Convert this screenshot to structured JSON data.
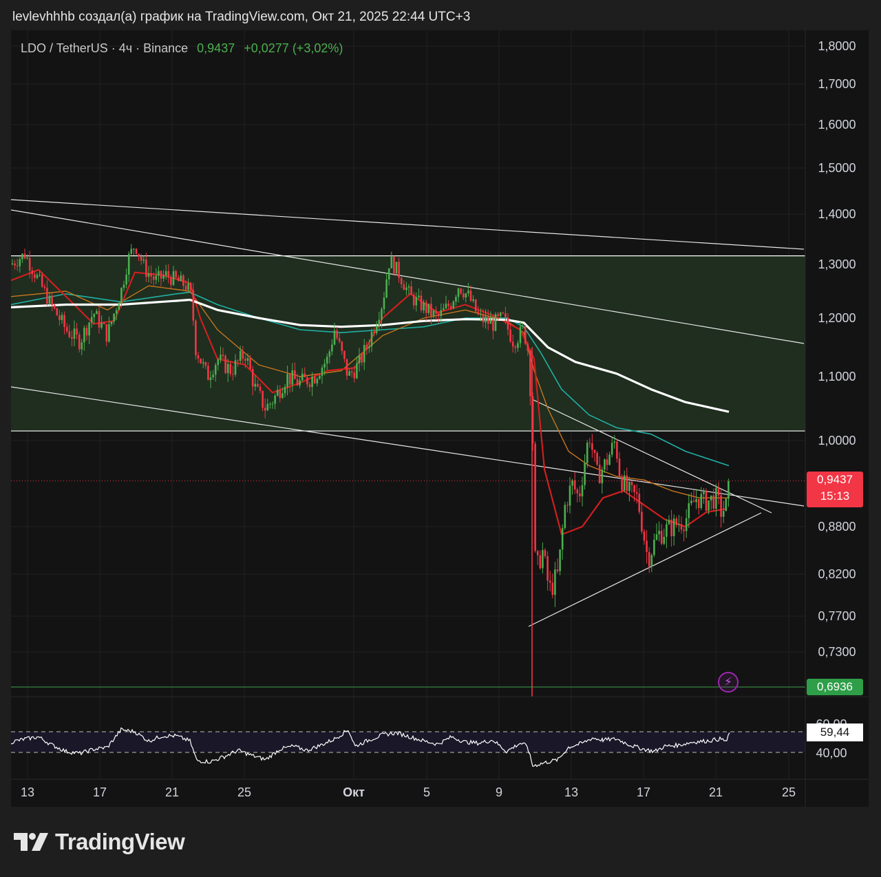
{
  "header": {
    "text": "levlevhhhb создал(а) график на TradingView.com, Окт 21, 2025 22:44 UTC+3"
  },
  "symbol": {
    "name": "LDO / TetherUS · 4ч · Binance",
    "price": "0,9437",
    "change": "+0,0277 (+3,02%)"
  },
  "badges": {
    "last_price": "0,9437",
    "countdown": "15:13",
    "low_price": "0,6936",
    "rsi_value": "59,44"
  },
  "brand": {
    "name": "TradingView"
  },
  "icons": {
    "flash": "flash-icon",
    "logo": "tradingview-logo-icon"
  },
  "colors": {
    "up": "#4caf50",
    "down": "#f23645",
    "ema_short": "#d01f1f",
    "ema_mid": "#c9761d",
    "ema_long": "#1fb2a6",
    "ema_main": "#ffffff",
    "zone": "#1f2e1f",
    "rsi_band": "#1a1728"
  },
  "chart_data": {
    "type": "candlestick",
    "symbol": "LDO / TetherUS",
    "timeframe": "4ч",
    "exchange": "Binance",
    "price_axis": {
      "ticks": [
        {
          "label": "1,8000",
          "value": 1.8
        },
        {
          "label": "1,7000",
          "value": 1.7
        },
        {
          "label": "1,6000",
          "value": 1.6
        },
        {
          "label": "1,5000",
          "value": 1.5
        },
        {
          "label": "1,4000",
          "value": 1.4
        },
        {
          "label": "1,3000",
          "value": 1.3
        },
        {
          "label": "1,2000",
          "value": 1.2
        },
        {
          "label": "1,1000",
          "value": 1.1
        },
        {
          "label": "1,0000",
          "value": 1.0
        },
        {
          "label": "0,8800",
          "value": 0.88
        },
        {
          "label": "0,8200",
          "value": 0.82
        },
        {
          "label": "0,7700",
          "value": 0.77
        },
        {
          "label": "0,7300",
          "value": 0.73
        }
      ]
    },
    "time_axis": {
      "ticks": [
        "13",
        "17",
        "21",
        "25",
        "Окт",
        "5",
        "9",
        "13",
        "17",
        "21",
        "25"
      ]
    },
    "zone": {
      "low": 1.015,
      "high": 1.317
    },
    "last_price": 0.9437,
    "low_level": 0.6936,
    "price_path": [
      [
        0,
        1.3
      ],
      [
        20,
        1.32
      ],
      [
        40,
        1.27
      ],
      [
        60,
        1.22
      ],
      [
        80,
        1.18
      ],
      [
        100,
        1.16
      ],
      [
        120,
        1.21
      ],
      [
        140,
        1.17
      ],
      [
        160,
        1.25
      ],
      [
        170,
        1.31
      ],
      [
        180,
        1.34
      ],
      [
        195,
        1.29
      ],
      [
        210,
        1.27
      ],
      [
        225,
        1.28
      ],
      [
        240,
        1.27
      ],
      [
        255,
        1.26
      ],
      [
        262,
        1.24
      ],
      [
        268,
        1.15
      ],
      [
        285,
        1.1
      ],
      [
        300,
        1.13
      ],
      [
        320,
        1.11
      ],
      [
        340,
        1.14
      ],
      [
        355,
        1.08
      ],
      [
        370,
        1.05
      ],
      [
        385,
        1.07
      ],
      [
        400,
        1.1
      ],
      [
        420,
        1.09
      ],
      [
        440,
        1.1
      ],
      [
        460,
        1.13
      ],
      [
        470,
        1.18
      ],
      [
        490,
        1.1
      ],
      [
        505,
        1.12
      ],
      [
        520,
        1.16
      ],
      [
        540,
        1.23
      ],
      [
        550,
        1.31
      ],
      [
        565,
        1.28
      ],
      [
        580,
        1.24
      ],
      [
        600,
        1.22
      ],
      [
        620,
        1.2
      ],
      [
        640,
        1.23
      ],
      [
        650,
        1.26
      ],
      [
        665,
        1.24
      ],
      [
        680,
        1.2
      ],
      [
        700,
        1.19
      ],
      [
        715,
        1.2
      ],
      [
        730,
        1.16
      ],
      [
        745,
        1.18
      ],
      [
        752,
        1.14
      ],
      [
        758,
        1.0
      ],
      [
        762,
        0.82
      ],
      [
        772,
        0.85
      ],
      [
        782,
        0.8
      ],
      [
        795,
        0.82
      ],
      [
        805,
        0.91
      ],
      [
        815,
        0.94
      ],
      [
        825,
        0.92
      ],
      [
        840,
        1.01
      ],
      [
        852,
        0.95
      ],
      [
        865,
        0.97
      ],
      [
        878,
        1.0
      ],
      [
        885,
        0.95
      ],
      [
        895,
        0.93
      ],
      [
        910,
        0.92
      ],
      [
        925,
        0.84
      ],
      [
        940,
        0.87
      ],
      [
        960,
        0.88
      ],
      [
        980,
        0.89
      ],
      [
        995,
        0.92
      ],
      [
        1010,
        0.915
      ],
      [
        1025,
        0.92
      ],
      [
        1032,
        0.9
      ],
      [
        1040,
        0.91
      ],
      [
        1044,
        0.9437
      ]
    ],
    "ema_main": [
      [
        0,
        1.22
      ],
      [
        80,
        1.225
      ],
      [
        160,
        1.225
      ],
      [
        240,
        1.232
      ],
      [
        260,
        1.234
      ],
      [
        300,
        1.215
      ],
      [
        360,
        1.2
      ],
      [
        420,
        1.188
      ],
      [
        480,
        1.185
      ],
      [
        540,
        1.188
      ],
      [
        600,
        1.195
      ],
      [
        660,
        1.198
      ],
      [
        720,
        1.197
      ],
      [
        745,
        1.192
      ],
      [
        780,
        1.15
      ],
      [
        820,
        1.125
      ],
      [
        880,
        1.105
      ],
      [
        930,
        1.08
      ],
      [
        980,
        1.06
      ],
      [
        1043,
        1.045
      ]
    ],
    "ema_long": [
      [
        0,
        1.225
      ],
      [
        80,
        1.245
      ],
      [
        160,
        1.23
      ],
      [
        240,
        1.245
      ],
      [
        260,
        1.248
      ],
      [
        300,
        1.225
      ],
      [
        360,
        1.2
      ],
      [
        420,
        1.18
      ],
      [
        480,
        1.175
      ],
      [
        540,
        1.18
      ],
      [
        600,
        1.185
      ],
      [
        660,
        1.2
      ],
      [
        720,
        1.2
      ],
      [
        745,
        1.185
      ],
      [
        770,
        1.14
      ],
      [
        800,
        1.08
      ],
      [
        840,
        1.04
      ],
      [
        880,
        1.02
      ],
      [
        930,
        1.01
      ],
      [
        980,
        0.985
      ],
      [
        1043,
        0.965
      ]
    ],
    "ema_mid": [
      [
        0,
        1.24
      ],
      [
        80,
        1.25
      ],
      [
        140,
        1.215
      ],
      [
        200,
        1.26
      ],
      [
        260,
        1.25
      ],
      [
        300,
        1.18
      ],
      [
        360,
        1.12
      ],
      [
        420,
        1.1
      ],
      [
        480,
        1.11
      ],
      [
        540,
        1.17
      ],
      [
        600,
        1.2
      ],
      [
        660,
        1.215
      ],
      [
        720,
        1.195
      ],
      [
        745,
        1.175
      ],
      [
        760,
        1.11
      ],
      [
        780,
        1.05
      ],
      [
        810,
        0.985
      ],
      [
        840,
        0.965
      ],
      [
        880,
        0.95
      ],
      [
        920,
        0.945
      ],
      [
        960,
        0.93
      ],
      [
        1000,
        0.92
      ],
      [
        1043,
        0.92
      ]
    ],
    "ema_short": [
      [
        0,
        1.27
      ],
      [
        40,
        1.29
      ],
      [
        80,
        1.24
      ],
      [
        120,
        1.19
      ],
      [
        150,
        1.195
      ],
      [
        180,
        1.285
      ],
      [
        220,
        1.28
      ],
      [
        260,
        1.265
      ],
      [
        275,
        1.2
      ],
      [
        300,
        1.13
      ],
      [
        340,
        1.12
      ],
      [
        380,
        1.075
      ],
      [
        420,
        1.09
      ],
      [
        460,
        1.11
      ],
      [
        500,
        1.115
      ],
      [
        540,
        1.2
      ],
      [
        580,
        1.245
      ],
      [
        620,
        1.21
      ],
      [
        660,
        1.225
      ],
      [
        700,
        1.205
      ],
      [
        740,
        1.18
      ],
      [
        760,
        1.13
      ],
      [
        775,
        0.96
      ],
      [
        800,
        0.87
      ],
      [
        830,
        0.88
      ],
      [
        860,
        0.92
      ],
      [
        890,
        0.93
      ],
      [
        920,
        0.91
      ],
      [
        950,
        0.89
      ],
      [
        980,
        0.88
      ],
      [
        1010,
        0.9
      ],
      [
        1040,
        0.905
      ]
    ],
    "trendlines": [
      {
        "from": [
          0,
          290
        ],
        "to": [
          1152,
          362
        ]
      },
      {
        "from": [
          0,
          305
        ],
        "to": [
          1152,
          499
        ]
      },
      {
        "from": [
          0,
          562
        ],
        "to": [
          1152,
          735
        ]
      },
      {
        "from": [
          757,
          580
        ],
        "to": [
          1105,
          745
        ]
      },
      {
        "from": [
          752,
          910
        ],
        "to": [
          1090,
          745
        ]
      }
    ],
    "rsi": {
      "upper": 60,
      "lower": 40,
      "ticks": [
        "60,00",
        "40,00"
      ],
      "value": 59.44,
      "path": [
        [
          0,
          50
        ],
        [
          20,
          53
        ],
        [
          40,
          55
        ],
        [
          60,
          47
        ],
        [
          80,
          41
        ],
        [
          100,
          39
        ],
        [
          120,
          43
        ],
        [
          140,
          45
        ],
        [
          160,
          62
        ],
        [
          180,
          60
        ],
        [
          200,
          51
        ],
        [
          220,
          56
        ],
        [
          240,
          56
        ],
        [
          260,
          51
        ],
        [
          270,
          32
        ],
        [
          290,
          31
        ],
        [
          310,
          36
        ],
        [
          330,
          42
        ],
        [
          350,
          37
        ],
        [
          370,
          33
        ],
        [
          390,
          43
        ],
        [
          410,
          46
        ],
        [
          430,
          42
        ],
        [
          450,
          47
        ],
        [
          470,
          53
        ],
        [
          490,
          62
        ],
        [
          500,
          46
        ],
        [
          520,
          52
        ],
        [
          540,
          57
        ],
        [
          560,
          59
        ],
        [
          580,
          55
        ],
        [
          600,
          51
        ],
        [
          620,
          48
        ],
        [
          640,
          55
        ],
        [
          660,
          50
        ],
        [
          680,
          49
        ],
        [
          700,
          52
        ],
        [
          720,
          41
        ],
        [
          740,
          49
        ],
        [
          750,
          46
        ],
        [
          758,
          27
        ],
        [
          775,
          30
        ],
        [
          795,
          33
        ],
        [
          810,
          45
        ],
        [
          830,
          49
        ],
        [
          845,
          54
        ],
        [
          860,
          52
        ],
        [
          880,
          53
        ],
        [
          900,
          47
        ],
        [
          920,
          43
        ],
        [
          935,
          41
        ],
        [
          950,
          46
        ],
        [
          970,
          47
        ],
        [
          990,
          50
        ],
        [
          1010,
          51
        ],
        [
          1030,
          53
        ],
        [
          1040,
          51
        ],
        [
          1044,
          59
        ]
      ]
    }
  }
}
